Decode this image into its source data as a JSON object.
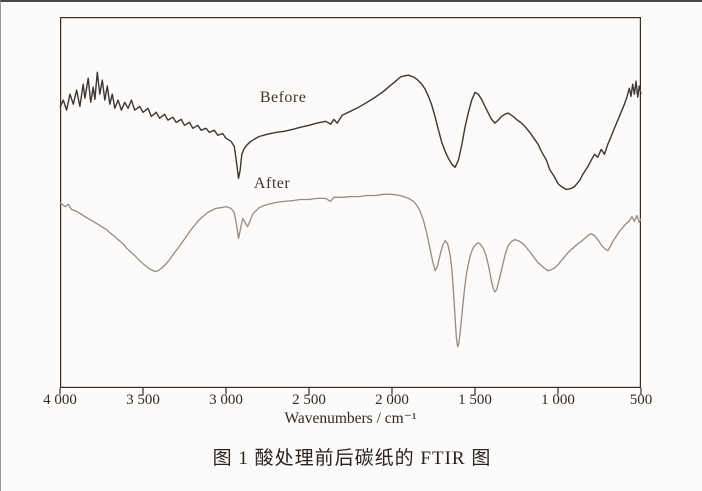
{
  "figure": {
    "caption": "图 1  酸处理前后碳纸的 FTIR 图"
  },
  "chart_data": {
    "type": "line",
    "title": "",
    "xlabel": "Wavenumbers / cm⁻¹",
    "ylabel": "",
    "x_range": [
      4000,
      500
    ],
    "x_axis_reversed": true,
    "grid": false,
    "legend_position": "inline-labels",
    "y_encoding": "arbitrary transmittance, percent of plot height measured from top",
    "x_ticks": [
      {
        "value": 4000,
        "label": "4 000"
      },
      {
        "value": 3500,
        "label": "3 500"
      },
      {
        "value": 3000,
        "label": "3 000"
      },
      {
        "value": 2500,
        "label": "2 500"
      },
      {
        "value": 2000,
        "label": "2 000"
      },
      {
        "value": 1500,
        "label": "1 500"
      },
      {
        "value": 1000,
        "label": "1 000"
      },
      {
        "value": 500,
        "label": "500"
      }
    ],
    "series": [
      {
        "name": "Before",
        "label": "Before",
        "color": "#3b3733",
        "width": 1.4,
        "points": [
          [
            4000,
            24.3
          ],
          [
            3980,
            22.4
          ],
          [
            3960,
            25.1
          ],
          [
            3940,
            20.8
          ],
          [
            3920,
            23.5
          ],
          [
            3900,
            19.7
          ],
          [
            3880,
            24.1
          ],
          [
            3860,
            18.1
          ],
          [
            3850,
            21.9
          ],
          [
            3830,
            16.5
          ],
          [
            3815,
            23.0
          ],
          [
            3800,
            18.9
          ],
          [
            3790,
            22.2
          ],
          [
            3775,
            14.9
          ],
          [
            3760,
            20.8
          ],
          [
            3745,
            17.0
          ],
          [
            3730,
            22.4
          ],
          [
            3715,
            18.6
          ],
          [
            3700,
            23.5
          ],
          [
            3685,
            20.8
          ],
          [
            3670,
            24.6
          ],
          [
            3650,
            22.4
          ],
          [
            3630,
            25.1
          ],
          [
            3610,
            23.0
          ],
          [
            3590,
            24.6
          ],
          [
            3570,
            22.4
          ],
          [
            3550,
            25.1
          ],
          [
            3520,
            24.1
          ],
          [
            3500,
            25.7
          ],
          [
            3470,
            24.6
          ],
          [
            3450,
            26.8
          ],
          [
            3420,
            25.7
          ],
          [
            3400,
            27.3
          ],
          [
            3370,
            26.2
          ],
          [
            3350,
            27.8
          ],
          [
            3320,
            27.0
          ],
          [
            3300,
            28.4
          ],
          [
            3270,
            27.6
          ],
          [
            3250,
            29.2
          ],
          [
            3220,
            28.4
          ],
          [
            3200,
            30.0
          ],
          [
            3170,
            29.2
          ],
          [
            3150,
            30.5
          ],
          [
            3120,
            30.0
          ],
          [
            3100,
            31.1
          ],
          [
            3070,
            30.5
          ],
          [
            3050,
            31.9
          ],
          [
            3020,
            31.4
          ],
          [
            3000,
            32.7
          ],
          [
            2970,
            33.5
          ],
          [
            2950,
            34.9
          ],
          [
            2935,
            39.7
          ],
          [
            2925,
            43.5
          ],
          [
            2915,
            41.4
          ],
          [
            2905,
            37.0
          ],
          [
            2890,
            35.4
          ],
          [
            2870,
            34.3
          ],
          [
            2850,
            33.5
          ],
          [
            2820,
            32.7
          ],
          [
            2800,
            32.2
          ],
          [
            2750,
            31.6
          ],
          [
            2700,
            31.1
          ],
          [
            2650,
            30.8
          ],
          [
            2600,
            30.3
          ],
          [
            2550,
            29.7
          ],
          [
            2500,
            29.2
          ],
          [
            2450,
            28.6
          ],
          [
            2400,
            28.1
          ],
          [
            2370,
            28.9
          ],
          [
            2350,
            27.6
          ],
          [
            2330,
            28.6
          ],
          [
            2300,
            26.5
          ],
          [
            2250,
            25.4
          ],
          [
            2200,
            24.3
          ],
          [
            2150,
            23.0
          ],
          [
            2100,
            21.6
          ],
          [
            2050,
            20.0
          ],
          [
            2000,
            18.1
          ],
          [
            1970,
            17.0
          ],
          [
            1950,
            16.2
          ],
          [
            1930,
            15.9
          ],
          [
            1900,
            15.7
          ],
          [
            1870,
            16.2
          ],
          [
            1850,
            16.8
          ],
          [
            1820,
            18.1
          ],
          [
            1800,
            19.5
          ],
          [
            1780,
            21.4
          ],
          [
            1760,
            23.8
          ],
          [
            1740,
            27.0
          ],
          [
            1720,
            30.5
          ],
          [
            1700,
            33.8
          ],
          [
            1680,
            36.2
          ],
          [
            1660,
            38.1
          ],
          [
            1640,
            39.7
          ],
          [
            1620,
            40.5
          ],
          [
            1600,
            38.6
          ],
          [
            1580,
            34.6
          ],
          [
            1560,
            29.7
          ],
          [
            1540,
            25.7
          ],
          [
            1520,
            22.4
          ],
          [
            1500,
            20.3
          ],
          [
            1480,
            20.8
          ],
          [
            1460,
            22.2
          ],
          [
            1440,
            24.1
          ],
          [
            1420,
            25.9
          ],
          [
            1400,
            27.6
          ],
          [
            1380,
            28.6
          ],
          [
            1360,
            27.8
          ],
          [
            1340,
            26.8
          ],
          [
            1320,
            26.2
          ],
          [
            1300,
            25.9
          ],
          [
            1270,
            26.8
          ],
          [
            1250,
            27.6
          ],
          [
            1220,
            28.6
          ],
          [
            1200,
            29.5
          ],
          [
            1170,
            31.1
          ],
          [
            1150,
            32.4
          ],
          [
            1120,
            34.3
          ],
          [
            1100,
            36.2
          ],
          [
            1070,
            38.6
          ],
          [
            1050,
            41.1
          ],
          [
            1020,
            43.2
          ],
          [
            1000,
            44.9
          ],
          [
            980,
            45.7
          ],
          [
            950,
            46.5
          ],
          [
            920,
            46.2
          ],
          [
            900,
            45.7
          ],
          [
            870,
            44.1
          ],
          [
            850,
            42.4
          ],
          [
            820,
            40.3
          ],
          [
            800,
            38.6
          ],
          [
            780,
            37.0
          ],
          [
            760,
            37.8
          ],
          [
            740,
            35.7
          ],
          [
            720,
            37.0
          ],
          [
            700,
            34.3
          ],
          [
            680,
            32.2
          ],
          [
            660,
            30.0
          ],
          [
            640,
            27.8
          ],
          [
            620,
            25.7
          ],
          [
            600,
            23.5
          ],
          [
            585,
            21.6
          ],
          [
            570,
            19.2
          ],
          [
            560,
            21.4
          ],
          [
            550,
            18.1
          ],
          [
            540,
            20.8
          ],
          [
            530,
            17.3
          ],
          [
            520,
            21.6
          ],
          [
            510,
            18.6
          ],
          [
            500,
            20.8
          ]
        ]
      },
      {
        "name": "After",
        "label": "After",
        "color": "#958b81",
        "width": 1.3,
        "points": [
          [
            4000,
            50.0
          ],
          [
            3970,
            51.1
          ],
          [
            3950,
            50.5
          ],
          [
            3930,
            51.9
          ],
          [
            3900,
            52.4
          ],
          [
            3870,
            53.2
          ],
          [
            3850,
            53.8
          ],
          [
            3820,
            54.6
          ],
          [
            3800,
            55.1
          ],
          [
            3770,
            55.9
          ],
          [
            3750,
            56.5
          ],
          [
            3720,
            57.3
          ],
          [
            3700,
            58.1
          ],
          [
            3670,
            59.2
          ],
          [
            3650,
            60.0
          ],
          [
            3620,
            61.1
          ],
          [
            3600,
            62.2
          ],
          [
            3570,
            63.5
          ],
          [
            3550,
            64.3
          ],
          [
            3520,
            65.7
          ],
          [
            3500,
            66.5
          ],
          [
            3470,
            67.6
          ],
          [
            3450,
            68.1
          ],
          [
            3430,
            68.6
          ],
          [
            3410,
            68.4
          ],
          [
            3390,
            67.8
          ],
          [
            3360,
            66.5
          ],
          [
            3340,
            65.4
          ],
          [
            3310,
            63.5
          ],
          [
            3290,
            62.4
          ],
          [
            3260,
            60.5
          ],
          [
            3240,
            59.2
          ],
          [
            3210,
            57.3
          ],
          [
            3190,
            56.2
          ],
          [
            3160,
            54.6
          ],
          [
            3140,
            53.8
          ],
          [
            3110,
            52.7
          ],
          [
            3090,
            52.2
          ],
          [
            3060,
            51.6
          ],
          [
            3030,
            51.4
          ],
          [
            3000,
            51.1
          ],
          [
            2970,
            51.6
          ],
          [
            2950,
            52.7
          ],
          [
            2935,
            56.5
          ],
          [
            2925,
            59.7
          ],
          [
            2915,
            57.6
          ],
          [
            2900,
            54.3
          ],
          [
            2885,
            55.4
          ],
          [
            2870,
            56.5
          ],
          [
            2855,
            54.9
          ],
          [
            2840,
            53.2
          ],
          [
            2820,
            52.2
          ],
          [
            2800,
            51.4
          ],
          [
            2770,
            50.8
          ],
          [
            2750,
            50.5
          ],
          [
            2700,
            50.0
          ],
          [
            2650,
            49.7
          ],
          [
            2600,
            49.5
          ],
          [
            2550,
            49.2
          ],
          [
            2500,
            49.2
          ],
          [
            2450,
            48.9
          ],
          [
            2400,
            48.9
          ],
          [
            2370,
            49.7
          ],
          [
            2350,
            48.6
          ],
          [
            2300,
            48.6
          ],
          [
            2250,
            48.4
          ],
          [
            2200,
            48.4
          ],
          [
            2150,
            48.1
          ],
          [
            2100,
            48.1
          ],
          [
            2050,
            47.8
          ],
          [
            2000,
            47.8
          ],
          [
            1950,
            48.1
          ],
          [
            1900,
            48.9
          ],
          [
            1870,
            49.7
          ],
          [
            1850,
            50.8
          ],
          [
            1830,
            52.4
          ],
          [
            1810,
            54.9
          ],
          [
            1790,
            58.4
          ],
          [
            1770,
            62.7
          ],
          [
            1755,
            65.9
          ],
          [
            1740,
            68.4
          ],
          [
            1725,
            67.0
          ],
          [
            1710,
            64.1
          ],
          [
            1695,
            61.6
          ],
          [
            1680,
            60.3
          ],
          [
            1665,
            61.1
          ],
          [
            1650,
            64.1
          ],
          [
            1640,
            67.8
          ],
          [
            1630,
            73.8
          ],
          [
            1620,
            81.1
          ],
          [
            1612,
            86.5
          ],
          [
            1605,
            88.9
          ],
          [
            1598,
            88.1
          ],
          [
            1590,
            85.1
          ],
          [
            1580,
            80.8
          ],
          [
            1570,
            76.2
          ],
          [
            1560,
            72.2
          ],
          [
            1550,
            68.9
          ],
          [
            1540,
            66.5
          ],
          [
            1530,
            64.6
          ],
          [
            1520,
            63.2
          ],
          [
            1510,
            62.2
          ],
          [
            1500,
            61.6
          ],
          [
            1490,
            61.1
          ],
          [
            1480,
            60.8
          ],
          [
            1465,
            61.4
          ],
          [
            1450,
            62.4
          ],
          [
            1435,
            64.1
          ],
          [
            1420,
            66.8
          ],
          [
            1410,
            68.9
          ],
          [
            1400,
            71.4
          ],
          [
            1390,
            73.2
          ],
          [
            1380,
            74.1
          ],
          [
            1370,
            73.5
          ],
          [
            1360,
            71.9
          ],
          [
            1345,
            69.2
          ],
          [
            1330,
            66.2
          ],
          [
            1315,
            63.5
          ],
          [
            1300,
            61.6
          ],
          [
            1280,
            60.5
          ],
          [
            1260,
            60.0
          ],
          [
            1240,
            60.3
          ],
          [
            1220,
            60.8
          ],
          [
            1200,
            61.6
          ],
          [
            1180,
            62.7
          ],
          [
            1160,
            63.8
          ],
          [
            1140,
            65.1
          ],
          [
            1120,
            66.2
          ],
          [
            1100,
            67.0
          ],
          [
            1080,
            67.8
          ],
          [
            1060,
            68.4
          ],
          [
            1040,
            68.1
          ],
          [
            1020,
            67.6
          ],
          [
            1000,
            66.8
          ],
          [
            980,
            65.7
          ],
          [
            960,
            64.6
          ],
          [
            940,
            63.5
          ],
          [
            920,
            62.7
          ],
          [
            900,
            61.9
          ],
          [
            880,
            61.1
          ],
          [
            860,
            60.5
          ],
          [
            840,
            59.7
          ],
          [
            820,
            58.9
          ],
          [
            800,
            58.4
          ],
          [
            780,
            58.9
          ],
          [
            760,
            60.0
          ],
          [
            740,
            61.4
          ],
          [
            720,
            62.4
          ],
          [
            700,
            63.0
          ],
          [
            685,
            61.9
          ],
          [
            670,
            60.5
          ],
          [
            650,
            59.2
          ],
          [
            630,
            57.8
          ],
          [
            610,
            56.8
          ],
          [
            590,
            55.7
          ],
          [
            570,
            54.9
          ],
          [
            555,
            53.8
          ],
          [
            540,
            55.1
          ],
          [
            525,
            53.5
          ],
          [
            510,
            55.4
          ],
          [
            500,
            54.3
          ]
        ]
      }
    ]
  }
}
